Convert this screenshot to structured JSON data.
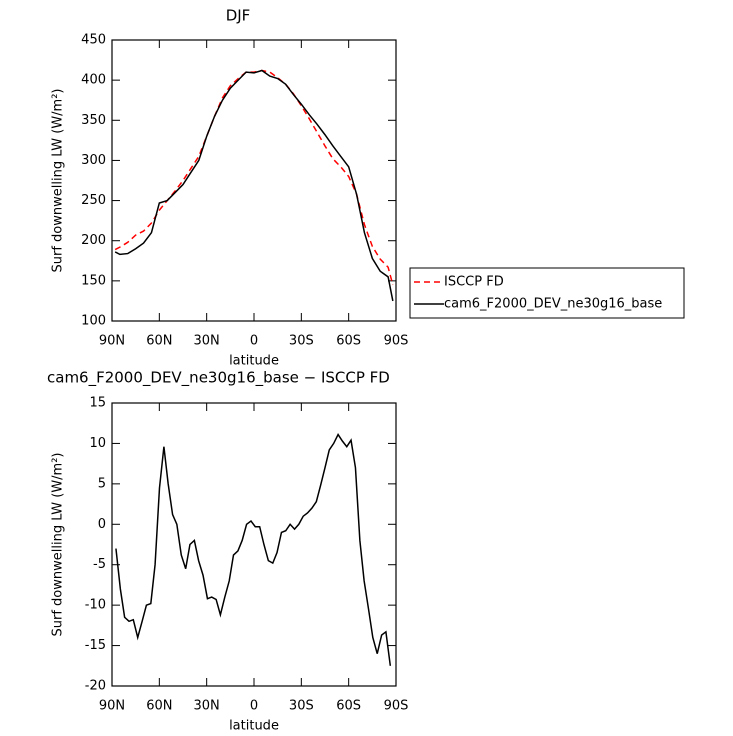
{
  "chart_data": [
    {
      "type": "line",
      "title": "DJF",
      "xlabel": "latitude",
      "ylabel": "Surf downwelling LW (W/m²)",
      "x": [
        88,
        85,
        80,
        75,
        70,
        65,
        60,
        55,
        50,
        45,
        40,
        35,
        30,
        25,
        20,
        15,
        10,
        5,
        0,
        -5,
        -10,
        -15,
        -20,
        -25,
        -30,
        -35,
        -40,
        -45,
        -50,
        -55,
        -60,
        -65,
        -70,
        -75,
        -80,
        -85,
        -88
      ],
      "series": [
        {
          "name": "ISCCP FD",
          "color": "#ff0000",
          "dash": true,
          "values": [
            189,
            192,
            198,
            207,
            212,
            222,
            238,
            250,
            262,
            275,
            290,
            305,
            330,
            355,
            378,
            393,
            402,
            410,
            410,
            412,
            410,
            403,
            395,
            383,
            368,
            352,
            335,
            318,
            302,
            292,
            280,
            258,
            220,
            193,
            177,
            167,
            145
          ]
        },
        {
          "name": "cam6_F2000_DEV_ne30g16_base",
          "color": "#000000",
          "dash": false,
          "values": [
            186,
            183,
            184,
            190,
            197,
            210,
            247,
            250,
            260,
            270,
            285,
            300,
            330,
            355,
            375,
            390,
            400,
            410,
            409,
            412,
            405,
            402,
            395,
            382,
            370,
            357,
            345,
            332,
            318,
            305,
            292,
            258,
            210,
            178,
            162,
            155,
            125
          ]
        }
      ],
      "xlim": [
        90,
        -90
      ],
      "xticks": [
        {
          "value": 90,
          "label": "90N"
        },
        {
          "value": 60,
          "label": "60N"
        },
        {
          "value": 30,
          "label": "30N"
        },
        0,
        {
          "value": -30,
          "label": "30S"
        },
        {
          "value": -60,
          "label": "60S"
        },
        {
          "value": -90,
          "label": "90S"
        }
      ],
      "ylim": [
        100,
        450
      ],
      "yticks": [
        100,
        150,
        200,
        250,
        300,
        350,
        400,
        450
      ],
      "legend": "outside-right"
    },
    {
      "type": "line",
      "title": "cam6_F2000_DEV_ne30g16_base − ISCCP FD",
      "xlabel": "latitude",
      "ylabel": "Surf downwelling LW (W/m²)",
      "x": [
        87.5,
        84.7,
        82.0,
        79.2,
        76.5,
        73.7,
        70.9,
        68.2,
        65.4,
        62.7,
        59.9,
        57.1,
        54.4,
        51.6,
        48.9,
        46.1,
        43.3,
        40.6,
        37.8,
        35.1,
        32.3,
        29.5,
        26.8,
        24.0,
        21.3,
        18.5,
        15.7,
        13.0,
        10.2,
        7.5,
        4.7,
        1.9,
        -0.8,
        -3.6,
        -6.3,
        -9.1,
        -11.9,
        -14.6,
        -17.4,
        -20.1,
        -22.9,
        -25.7,
        -28.4,
        -31.2,
        -33.9,
        -36.7,
        -39.5,
        -42.2,
        -45.0,
        -47.7,
        -50.5,
        -53.3,
        -56.0,
        -58.8,
        -61.5,
        -64.3,
        -67.1,
        -69.8,
        -72.6,
        -75.3,
        -78.1,
        -80.9,
        -83.6,
        -86.4
      ],
      "series": [
        {
          "color": "#000000",
          "dash": false,
          "values": [
            -3,
            -8,
            -11.5,
            -12,
            -11.8,
            -14,
            -12,
            -10,
            -9.8,
            -5,
            4.5,
            9.6,
            5,
            1.2,
            0,
            -3.8,
            -5.5,
            -2.5,
            -2,
            -4.5,
            -6.3,
            -9.2,
            -9,
            -9.3,
            -11.2,
            -9,
            -7,
            -3.8,
            -3.3,
            -2,
            0,
            0.4,
            -0.3,
            -0.3,
            -2.5,
            -4.5,
            -4.8,
            -3.5,
            -1,
            -0.8,
            0,
            -0.6,
            0,
            1,
            1.4,
            2,
            2.8,
            4.8,
            7,
            9.2,
            10,
            11.1,
            10.3,
            9.6,
            10.4,
            7,
            -2,
            -7,
            -10.5,
            -14,
            -16,
            -13.7,
            -13.3,
            -17.5
          ]
        }
      ],
      "xlim": [
        90,
        -90
      ],
      "xticks": [
        {
          "value": 90,
          "label": "90N"
        },
        {
          "value": 60,
          "label": "60N"
        },
        {
          "value": 30,
          "label": "30N"
        },
        0,
        {
          "value": -30,
          "label": "30S"
        },
        {
          "value": -60,
          "label": "60S"
        },
        {
          "value": -90,
          "label": "90S"
        }
      ],
      "ylim": [
        -20,
        15
      ],
      "yticks": [
        -20,
        -15,
        -10,
        -5,
        0,
        5,
        10,
        15
      ]
    }
  ]
}
